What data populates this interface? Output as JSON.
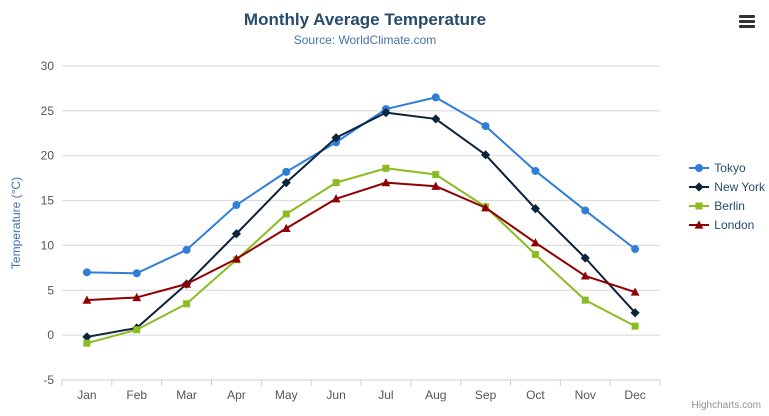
{
  "chart": {
    "credits_label": "Highcharts.com",
    "export_menu_icon": "hamburger-menu-icon"
  },
  "chart_data": {
    "type": "line",
    "title": "Monthly Average Temperature",
    "subtitle": "Source: WorldClimate.com",
    "categories": [
      "Jan",
      "Feb",
      "Mar",
      "Apr",
      "May",
      "Jun",
      "Jul",
      "Aug",
      "Sep",
      "Oct",
      "Nov",
      "Dec"
    ],
    "xlabel": "",
    "ylabel": "Temperature (°C)",
    "ylim": [
      -5,
      30
    ],
    "yTicks": [
      -5,
      0,
      5,
      10,
      15,
      20,
      25,
      30
    ],
    "grid": true,
    "legend_position": "right",
    "series": [
      {
        "name": "Tokyo",
        "color": "#2f7ed8",
        "marker": "circle",
        "values": [
          7.0,
          6.9,
          9.5,
          14.5,
          18.2,
          21.5,
          25.2,
          26.5,
          23.3,
          18.3,
          13.9,
          9.6
        ]
      },
      {
        "name": "New York",
        "color": "#0d233a",
        "marker": "diamond",
        "values": [
          -0.2,
          0.8,
          5.7,
          11.3,
          17.0,
          22.0,
          24.8,
          24.1,
          20.1,
          14.1,
          8.6,
          2.5
        ]
      },
      {
        "name": "Berlin",
        "color": "#8bbc21",
        "marker": "square",
        "values": [
          -0.9,
          0.6,
          3.5,
          8.4,
          13.5,
          17.0,
          18.6,
          17.9,
          14.3,
          9.0,
          3.9,
          1.0
        ]
      },
      {
        "name": "London",
        "color": "#910000",
        "marker": "triangle",
        "values": [
          3.9,
          4.2,
          5.7,
          8.5,
          11.9,
          15.2,
          17.0,
          16.6,
          14.2,
          10.3,
          6.6,
          4.8
        ]
      }
    ]
  }
}
